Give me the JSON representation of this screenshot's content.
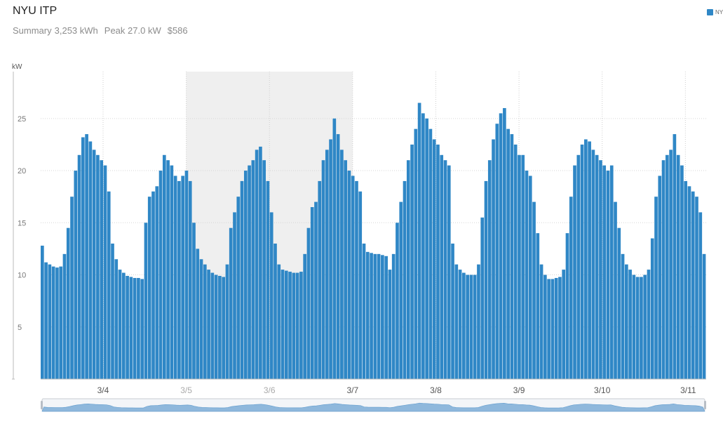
{
  "header": {
    "title": "NYU ITP",
    "summary_label": "Summary",
    "total_energy": "3,253 kWh",
    "peak": "Peak 27.0 kW",
    "cost": "$586"
  },
  "legend": {
    "entries": [
      {
        "label": "NYU ITP",
        "color": "#2f87c6"
      }
    ]
  },
  "chart_data": {
    "type": "bar",
    "title": "NYU ITP",
    "ylabel": "kW",
    "xlabel": "",
    "ylim": [
      0,
      29.5
    ],
    "yticks": [
      5,
      10,
      15,
      20,
      25
    ],
    "x_range_days": [
      2.25,
      10.25
    ],
    "xticks": [
      {
        "label": "3/4",
        "day": 3
      },
      {
        "label": "3/5",
        "day": 4
      },
      {
        "label": "3/6",
        "day": 5
      },
      {
        "label": "3/7",
        "day": 6
      },
      {
        "label": "3/8",
        "day": 7
      },
      {
        "label": "3/9",
        "day": 8
      },
      {
        "label": "3/10",
        "day": 9
      },
      {
        "label": "3/11",
        "day": 10
      }
    ],
    "shaded_region_days": [
      4,
      6
    ],
    "grid": true,
    "bar_color": "#2f87c6",
    "series": [
      {
        "name": "NYU ITP",
        "hourly_kw": [
          12.8,
          11.2,
          11.0,
          10.8,
          10.7,
          10.8,
          12.0,
          14.5,
          17.5,
          20.0,
          21.5,
          23.2,
          23.5,
          22.8,
          22.0,
          21.5,
          21.0,
          20.5,
          18.0,
          13.0,
          11.5,
          10.5,
          10.2,
          9.9,
          9.8,
          9.7,
          9.7,
          9.6,
          15.0,
          17.5,
          18.0,
          18.5,
          20.0,
          21.5,
          21.0,
          20.5,
          19.5,
          19.0,
          19.5,
          20.0,
          19.0,
          15.0,
          12.5,
          11.5,
          11.0,
          10.5,
          10.2,
          10.0,
          9.9,
          9.8,
          11.0,
          14.5,
          16.0,
          17.5,
          19.0,
          20.0,
          20.5,
          21.0,
          22.0,
          22.3,
          21.0,
          19.0,
          16.0,
          13.0,
          11.0,
          10.5,
          10.4,
          10.3,
          10.2,
          10.2,
          10.3,
          12.0,
          14.5,
          16.5,
          17.0,
          19.0,
          21.0,
          22.0,
          23.0,
          25.0,
          23.5,
          22.0,
          21.0,
          20.0,
          19.5,
          19.0,
          18.0,
          13.0,
          12.2,
          12.1,
          12.0,
          12.0,
          11.9,
          11.8,
          10.5,
          12.0,
          15.0,
          17.0,
          19.0,
          21.0,
          22.5,
          24.0,
          26.5,
          25.5,
          25.0,
          24.0,
          23.0,
          22.5,
          21.5,
          21.0,
          20.5,
          13.0,
          11.0,
          10.5,
          10.2,
          10.0,
          10.0,
          10.0,
          11.0,
          15.5,
          19.0,
          21.0,
          23.0,
          24.5,
          25.5,
          26.0,
          24.0,
          23.5,
          22.5,
          21.5,
          21.5,
          20.0,
          19.5,
          17.0,
          14.0,
          11.0,
          10.0,
          9.6,
          9.6,
          9.7,
          9.8,
          10.5,
          14.0,
          17.5,
          20.5,
          21.5,
          22.5,
          23.0,
          22.8,
          22.0,
          21.5,
          21.0,
          20.5,
          20.0,
          20.5,
          17.0,
          14.5,
          12.0,
          11.0,
          10.5,
          10.0,
          9.8,
          9.8,
          10.0,
          10.5,
          13.5,
          17.5,
          19.5,
          21.0,
          21.5,
          22.0,
          23.5,
          21.5,
          20.5,
          19.0,
          18.5,
          18.0,
          17.5,
          16.0,
          12.0
        ]
      }
    ]
  }
}
